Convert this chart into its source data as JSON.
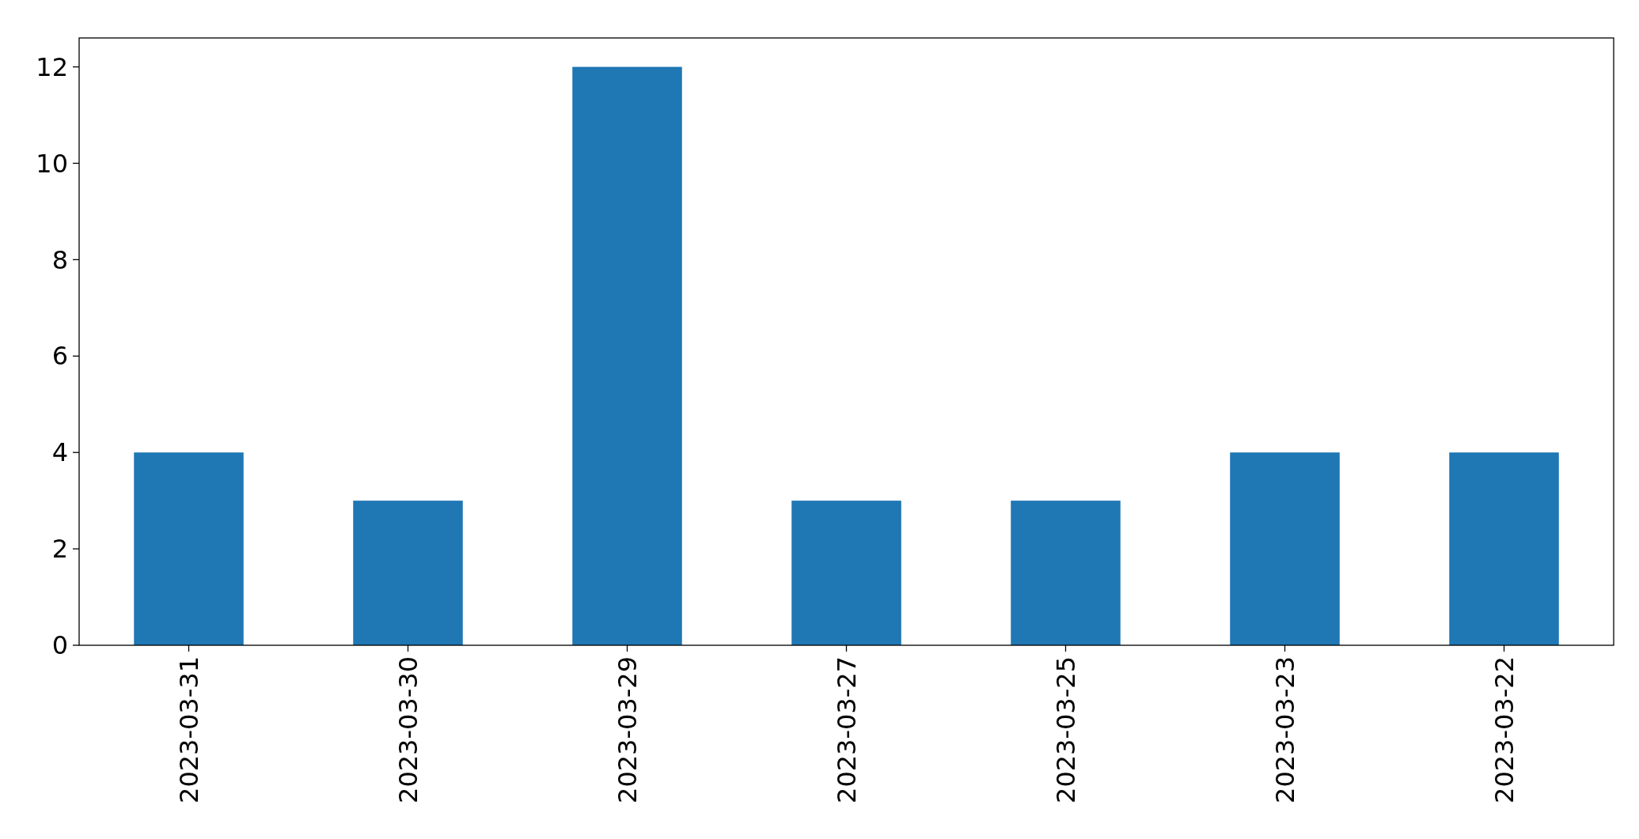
{
  "chart_data": {
    "type": "bar",
    "categories": [
      "2023-03-31",
      "2023-03-30",
      "2023-03-29",
      "2023-03-27",
      "2023-03-25",
      "2023-03-23",
      "2023-03-22"
    ],
    "values": [
      4,
      3,
      12,
      3,
      3,
      4,
      4
    ],
    "color": "#1f77b4",
    "ylim": [
      0,
      12.6
    ],
    "yticks": [
      0,
      2,
      4,
      6,
      8,
      10,
      12
    ],
    "grid": false
  }
}
